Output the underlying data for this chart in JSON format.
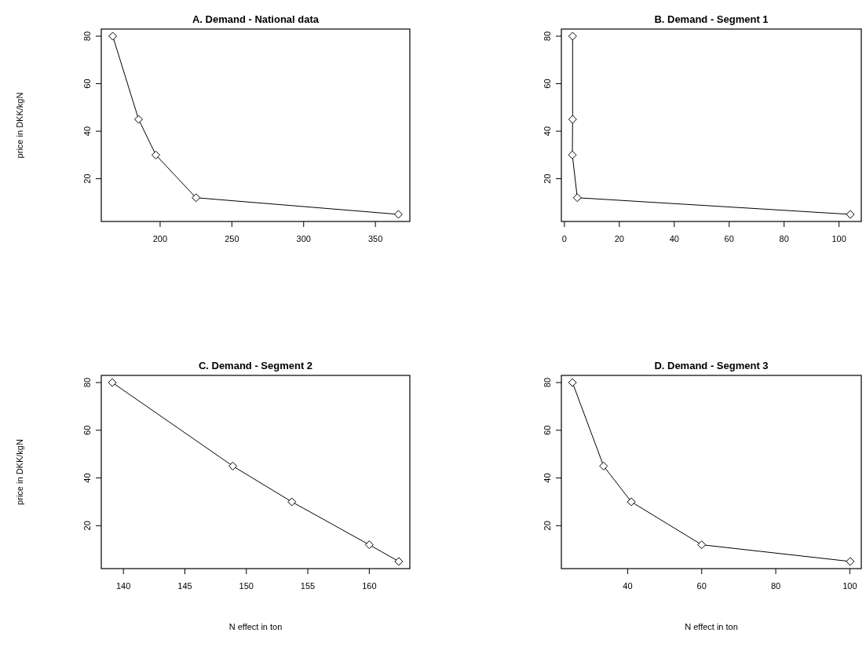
{
  "chart_data": [
    {
      "type": "line",
      "title": "A. Demand - National data",
      "ylabel": "price in DKK/kgN",
      "x": [
        167,
        185,
        197,
        225,
        366
      ],
      "values": [
        80,
        45,
        30,
        12,
        5
      ],
      "xlim": [
        159,
        374
      ],
      "ylim": [
        2,
        83
      ],
      "xticks": [
        200,
        250,
        300,
        350
      ],
      "yticks": [
        20,
        40,
        60,
        80
      ],
      "marker": "diamond",
      "grid": false,
      "color": "#000000"
    },
    {
      "type": "line",
      "title": "B. Demand - Segment 1",
      "x": [
        3,
        3,
        2.9,
        4.7,
        104.1
      ],
      "values": [
        80,
        45,
        30,
        12,
        5
      ],
      "xlim": [
        -1.1,
        108.1
      ],
      "ylim": [
        2,
        83
      ],
      "xticks": [
        0,
        20,
        40,
        60,
        80,
        100
      ],
      "yticks": [
        20,
        40,
        60,
        80
      ],
      "marker": "diamond",
      "grid": false,
      "color": "#000000"
    },
    {
      "type": "line",
      "title": "C. Demand - Segment 2",
      "xlabel": "N effect in ton",
      "ylabel": "price in DKK/kgN",
      "x": [
        139.1,
        148.9,
        153.7,
        160,
        162.4
      ],
      "values": [
        80,
        45,
        30,
        12,
        5
      ],
      "xlim": [
        138.2,
        163.3
      ],
      "ylim": [
        2,
        83
      ],
      "xticks": [
        140,
        145,
        150,
        155,
        160
      ],
      "yticks": [
        20,
        40,
        60,
        80
      ],
      "marker": "diamond",
      "grid": false,
      "color": "#000000"
    },
    {
      "type": "line",
      "title": "D. Demand - Segment 3",
      "xlabel": "N effect in ton",
      "x": [
        25.1,
        33.5,
        41,
        60,
        100.1
      ],
      "values": [
        80,
        45,
        30,
        12,
        5
      ],
      "xlim": [
        22.1,
        103.1
      ],
      "ylim": [
        2,
        83
      ],
      "xticks": [
        40,
        60,
        80,
        100
      ],
      "yticks": [
        20,
        40,
        60,
        80
      ],
      "marker": "diamond",
      "grid": false,
      "color": "#000000"
    }
  ]
}
